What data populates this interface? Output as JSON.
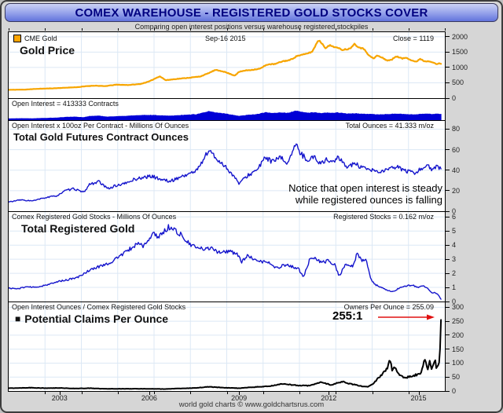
{
  "window": {
    "title": "COMEX WAREHOUSE - REGISTERED GOLD STOCKS COVER",
    "subtitle": "Comparing open interest positions versus warehouse registered stockpiles"
  },
  "footer": {
    "credit": "world gold charts © www.goldchartsrus.com"
  },
  "colors": {
    "gold": "#f7a500",
    "blue": "#1414cc",
    "area_blue": "#0000d6",
    "black": "#000000",
    "red_arrow": "#e01010",
    "grid": "#dce8f5",
    "header_title": "#000080",
    "legend_swatch": "#ffa500"
  },
  "x_axis": {
    "min": 2001.3,
    "max": 2015.88,
    "tick_years": [
      2003,
      2006,
      2009,
      2012,
      2015
    ]
  },
  "chart_data": [
    {
      "name": "gold_price",
      "type": "line",
      "color_key": "gold",
      "legend": "CME Gold",
      "date_label": "Sep-16 2015",
      "value_label": "Close = 1119",
      "title": "Gold Price",
      "ylim": [
        0,
        2150
      ],
      "yticks": [
        0,
        500,
        1000,
        1500,
        2000
      ],
      "anchors": [
        [
          2001.3,
          272
        ],
        [
          2001.8,
          278
        ],
        [
          2002.3,
          305
        ],
        [
          2002.8,
          320
        ],
        [
          2003.2,
          340
        ],
        [
          2003.6,
          358
        ],
        [
          2003.95,
          395
        ],
        [
          2004.2,
          408
        ],
        [
          2004.5,
          390
        ],
        [
          2004.9,
          438
        ],
        [
          2005.3,
          428
        ],
        [
          2005.7,
          460
        ],
        [
          2006.0,
          545
        ],
        [
          2006.35,
          715
        ],
        [
          2006.55,
          585
        ],
        [
          2006.9,
          625
        ],
        [
          2007.3,
          662
        ],
        [
          2007.7,
          705
        ],
        [
          2007.95,
          800
        ],
        [
          2008.2,
          915
        ],
        [
          2008.45,
          880
        ],
        [
          2008.7,
          790
        ],
        [
          2008.85,
          735
        ],
        [
          2009.0,
          855
        ],
        [
          2009.2,
          900
        ],
        [
          2009.45,
          925
        ],
        [
          2009.7,
          960
        ],
        [
          2009.95,
          1100
        ],
        [
          2010.2,
          1110
        ],
        [
          2010.45,
          1200
        ],
        [
          2010.7,
          1240
        ],
        [
          2010.95,
          1380
        ],
        [
          2011.2,
          1430
        ],
        [
          2011.45,
          1515
        ],
        [
          2011.65,
          1895
        ],
        [
          2011.78,
          1780
        ],
        [
          2011.88,
          1640
        ],
        [
          2012.05,
          1720
        ],
        [
          2012.25,
          1650
        ],
        [
          2012.45,
          1580
        ],
        [
          2012.7,
          1610
        ],
        [
          2012.85,
          1770
        ],
        [
          2013.0,
          1665
        ],
        [
          2013.2,
          1590
        ],
        [
          2013.35,
          1380
        ],
        [
          2013.5,
          1290
        ],
        [
          2013.62,
          1390
        ],
        [
          2013.78,
          1320
        ],
        [
          2013.95,
          1230
        ],
        [
          2014.1,
          1245
        ],
        [
          2014.25,
          1370
        ],
        [
          2014.45,
          1290
        ],
        [
          2014.6,
          1320
        ],
        [
          2014.8,
          1220
        ],
        [
          2014.95,
          1185
        ],
        [
          2015.05,
          1290
        ],
        [
          2015.2,
          1200
        ],
        [
          2015.35,
          1205
        ],
        [
          2015.5,
          1170
        ],
        [
          2015.62,
          1095
        ],
        [
          2015.7,
          1140
        ],
        [
          2015.75,
          1119
        ]
      ]
    },
    {
      "name": "open_interest_contracts",
      "type": "area",
      "color_key": "area_blue",
      "label": "Open Interest = 413333 Contracts",
      "ylim": [
        0,
        1500000
      ],
      "yticks": [],
      "anchors_of": {
        "panel": 2,
        "factor": 10000
      }
    },
    {
      "name": "futures_contract_ounces",
      "type": "line",
      "color_key": "blue",
      "header_left": "Open Interest x 100oz Per Contract - Millions Of Ounces",
      "header_right": "Total Ounces = 41.333 m/oz",
      "title": "Total Gold Futures Contract Ounces",
      "annotation_line1": "Notice that open interest is steady",
      "annotation_line2": "while registered ounces is falling",
      "ylim": [
        0,
        88
      ],
      "yticks": [
        0,
        20,
        40,
        60,
        80
      ],
      "anchors": [
        [
          2001.3,
          9
        ],
        [
          2001.7,
          11
        ],
        [
          2002.1,
          10
        ],
        [
          2002.5,
          13
        ],
        [
          2002.9,
          15
        ],
        [
          2003.2,
          20
        ],
        [
          2003.5,
          22
        ],
        [
          2003.8,
          18
        ],
        [
          2004.0,
          26
        ],
        [
          2004.3,
          29
        ],
        [
          2004.6,
          22
        ],
        [
          2004.9,
          25
        ],
        [
          2005.2,
          27
        ],
        [
          2005.5,
          31
        ],
        [
          2005.8,
          33
        ],
        [
          2006.1,
          34
        ],
        [
          2006.4,
          31
        ],
        [
          2006.7,
          29
        ],
        [
          2007.0,
          33
        ],
        [
          2007.3,
          36
        ],
        [
          2007.6,
          40
        ],
        [
          2007.9,
          55
        ],
        [
          2008.0,
          60
        ],
        [
          2008.2,
          52
        ],
        [
          2008.5,
          45
        ],
        [
          2008.8,
          35
        ],
        [
          2009.0,
          27
        ],
        [
          2009.3,
          35
        ],
        [
          2009.6,
          40
        ],
        [
          2009.9,
          53
        ],
        [
          2010.1,
          48
        ],
        [
          2010.4,
          52
        ],
        [
          2010.6,
          47
        ],
        [
          2010.9,
          64
        ],
        [
          2011.1,
          55
        ],
        [
          2011.3,
          50
        ],
        [
          2011.5,
          53
        ],
        [
          2011.7,
          47
        ],
        [
          2011.9,
          50
        ],
        [
          2012.1,
          48
        ],
        [
          2012.3,
          52
        ],
        [
          2012.6,
          44
        ],
        [
          2012.9,
          46
        ],
        [
          2013.1,
          42
        ],
        [
          2013.4,
          40
        ],
        [
          2013.7,
          38
        ],
        [
          2014.0,
          41
        ],
        [
          2014.3,
          43
        ],
        [
          2014.6,
          39
        ],
        [
          2014.9,
          37
        ],
        [
          2015.1,
          42
        ],
        [
          2015.3,
          45
        ],
        [
          2015.45,
          40
        ],
        [
          2015.6,
          43
        ],
        [
          2015.75,
          41.3
        ]
      ]
    },
    {
      "name": "registered_gold_stocks",
      "type": "line",
      "color_key": "blue",
      "header_left": "Comex Registered Gold Stocks - Millions Of Ounces",
      "header_right": "Registered Stocks = 0.162 m/oz",
      "title": "Total Registered Gold",
      "ylim": [
        0,
        6.35
      ],
      "yticks": [
        0,
        1,
        2,
        3,
        4,
        5,
        6
      ],
      "anchors": [
        [
          2001.3,
          0.95
        ],
        [
          2001.6,
          0.9
        ],
        [
          2001.9,
          1.05
        ],
        [
          2002.2,
          1.0
        ],
        [
          2002.5,
          1.15
        ],
        [
          2002.8,
          1.3
        ],
        [
          2003.0,
          1.45
        ],
        [
          2003.3,
          1.55
        ],
        [
          2003.6,
          1.7
        ],
        [
          2003.9,
          2.1
        ],
        [
          2004.1,
          2.3
        ],
        [
          2004.4,
          2.55
        ],
        [
          2004.7,
          2.75
        ],
        [
          2005.0,
          3.2
        ],
        [
          2005.2,
          3.5
        ],
        [
          2005.45,
          3.85
        ],
        [
          2005.6,
          4.15
        ],
        [
          2005.8,
          3.95
        ],
        [
          2006.0,
          4.35
        ],
        [
          2006.15,
          4.85
        ],
        [
          2006.3,
          4.6
        ],
        [
          2006.5,
          4.95
        ],
        [
          2006.65,
          5.3
        ],
        [
          2006.8,
          5.15
        ],
        [
          2007.0,
          4.85
        ],
        [
          2007.15,
          4.5
        ],
        [
          2007.35,
          4.05
        ],
        [
          2007.6,
          3.8
        ],
        [
          2007.85,
          3.7
        ],
        [
          2008.1,
          3.85
        ],
        [
          2008.3,
          3.5
        ],
        [
          2008.6,
          3.55
        ],
        [
          2008.9,
          3.45
        ],
        [
          2009.1,
          2.8
        ],
        [
          2009.3,
          3.3
        ],
        [
          2009.5,
          2.9
        ],
        [
          2009.75,
          2.85
        ],
        [
          2010.0,
          2.75
        ],
        [
          2010.25,
          2.35
        ],
        [
          2010.5,
          2.6
        ],
        [
          2010.75,
          2.5
        ],
        [
          2011.0,
          2.3
        ],
        [
          2011.15,
          1.7
        ],
        [
          2011.35,
          2.9
        ],
        [
          2011.55,
          3.1
        ],
        [
          2011.75,
          2.75
        ],
        [
          2012.0,
          2.9
        ],
        [
          2012.2,
          2.6
        ],
        [
          2012.35,
          1.8
        ],
        [
          2012.55,
          2.6
        ],
        [
          2012.8,
          2.5
        ],
        [
          2012.95,
          3.4
        ],
        [
          2013.1,
          2.9
        ],
        [
          2013.25,
          2.95
        ],
        [
          2013.4,
          1.6
        ],
        [
          2013.55,
          1.2
        ],
        [
          2013.75,
          1.0
        ],
        [
          2013.95,
          0.8
        ],
        [
          2014.15,
          0.7
        ],
        [
          2014.35,
          0.95
        ],
        [
          2014.55,
          1.1
        ],
        [
          2014.8,
          1.15
        ],
        [
          2015.0,
          1.0
        ],
        [
          2015.15,
          1.1
        ],
        [
          2015.3,
          0.95
        ],
        [
          2015.45,
          0.6
        ],
        [
          2015.55,
          0.65
        ],
        [
          2015.65,
          0.5
        ],
        [
          2015.75,
          0.162
        ]
      ]
    },
    {
      "name": "claims_per_ounce",
      "type": "line",
      "color_key": "black",
      "header_left": "Open Interest Ounces / Comex Registered Gold Stocks",
      "header_right": "Owners Per Ounce = 255.09",
      "title_marker": "■",
      "title": "Potential Claims Per Ounce",
      "ratio_label": "255:1",
      "ylim": [
        0,
        318
      ],
      "yticks": [
        0,
        50,
        100,
        150,
        200,
        250,
        300
      ],
      "anchors": [
        [
          2001.3,
          10
        ],
        [
          2002.0,
          12
        ],
        [
          2002.6,
          10
        ],
        [
          2003.0,
          11
        ],
        [
          2003.5,
          9
        ],
        [
          2004.0,
          10
        ],
        [
          2004.5,
          8
        ],
        [
          2005.0,
          8
        ],
        [
          2005.5,
          8
        ],
        [
          2006.0,
          8
        ],
        [
          2006.5,
          7
        ],
        [
          2007.0,
          9
        ],
        [
          2007.5,
          11
        ],
        [
          2008.0,
          15
        ],
        [
          2008.5,
          12
        ],
        [
          2009.0,
          10
        ],
        [
          2009.5,
          14
        ],
        [
          2010.0,
          17
        ],
        [
          2010.25,
          22
        ],
        [
          2010.5,
          26
        ],
        [
          2010.75,
          22
        ],
        [
          2011.0,
          20
        ],
        [
          2011.3,
          19
        ],
        [
          2011.55,
          25
        ],
        [
          2011.75,
          32
        ],
        [
          2011.9,
          27
        ],
        [
          2012.1,
          21
        ],
        [
          2012.3,
          30
        ],
        [
          2012.5,
          34
        ],
        [
          2012.7,
          26
        ],
        [
          2012.9,
          22
        ],
        [
          2013.1,
          17
        ],
        [
          2013.3,
          15
        ],
        [
          2013.5,
          28
        ],
        [
          2013.65,
          45
        ],
        [
          2013.8,
          62
        ],
        [
          2013.95,
          80
        ],
        [
          2014.05,
          112
        ],
        [
          2014.12,
          72
        ],
        [
          2014.2,
          88
        ],
        [
          2014.3,
          64
        ],
        [
          2014.42,
          55
        ],
        [
          2014.55,
          47
        ],
        [
          2014.7,
          52
        ],
        [
          2014.85,
          56
        ],
        [
          2015.0,
          60
        ],
        [
          2015.1,
          68
        ],
        [
          2015.17,
          98
        ],
        [
          2015.22,
          112
        ],
        [
          2015.3,
          72
        ],
        [
          2015.37,
          108
        ],
        [
          2015.44,
          80
        ],
        [
          2015.5,
          95
        ],
        [
          2015.55,
          112
        ],
        [
          2015.6,
          78
        ],
        [
          2015.66,
          92
        ],
        [
          2015.71,
          120
        ],
        [
          2015.75,
          255
        ]
      ]
    }
  ]
}
